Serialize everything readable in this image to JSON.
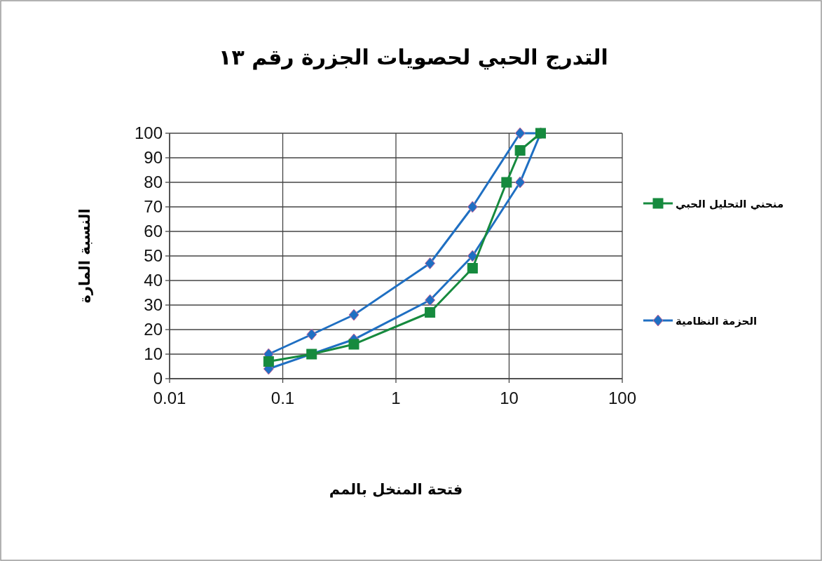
{
  "chart_data": {
    "type": "line",
    "title": "التدرج الحبي لحصويات الجزرة رقم ١٣",
    "xlabel": "فتحة المنخل بالمم",
    "ylabel": "النسبة المارة",
    "log": "x",
    "xlim": [
      0.01,
      100
    ],
    "xticks": [
      0.01,
      0.1,
      1,
      10,
      100
    ],
    "ylim": [
      0,
      100
    ],
    "yticks": [
      0,
      10,
      20,
      30,
      40,
      50,
      60,
      70,
      80,
      90,
      100
    ],
    "grid": true,
    "legend": "right",
    "series": [
      {
        "name": "منحني التحليل الحبي",
        "color": "#168a3e",
        "marker": "square",
        "x": [
          0.075,
          0.18,
          0.425,
          2,
          4.75,
          9.5,
          12.5,
          19
        ],
        "values": [
          7,
          10,
          14,
          27,
          45,
          80,
          93,
          100
        ]
      },
      {
        "name": "الحزمة النظامية",
        "color": "#1f6fc2",
        "marker": "diamond",
        "x": [
          0.075,
          0.425,
          2,
          4.75,
          12.5,
          19,
          12.5,
          4.75,
          2,
          0.425,
          0.18,
          0.075
        ],
        "values": [
          4,
          16,
          32,
          50,
          80,
          100,
          100,
          70,
          47,
          26,
          18,
          10
        ]
      }
    ]
  }
}
